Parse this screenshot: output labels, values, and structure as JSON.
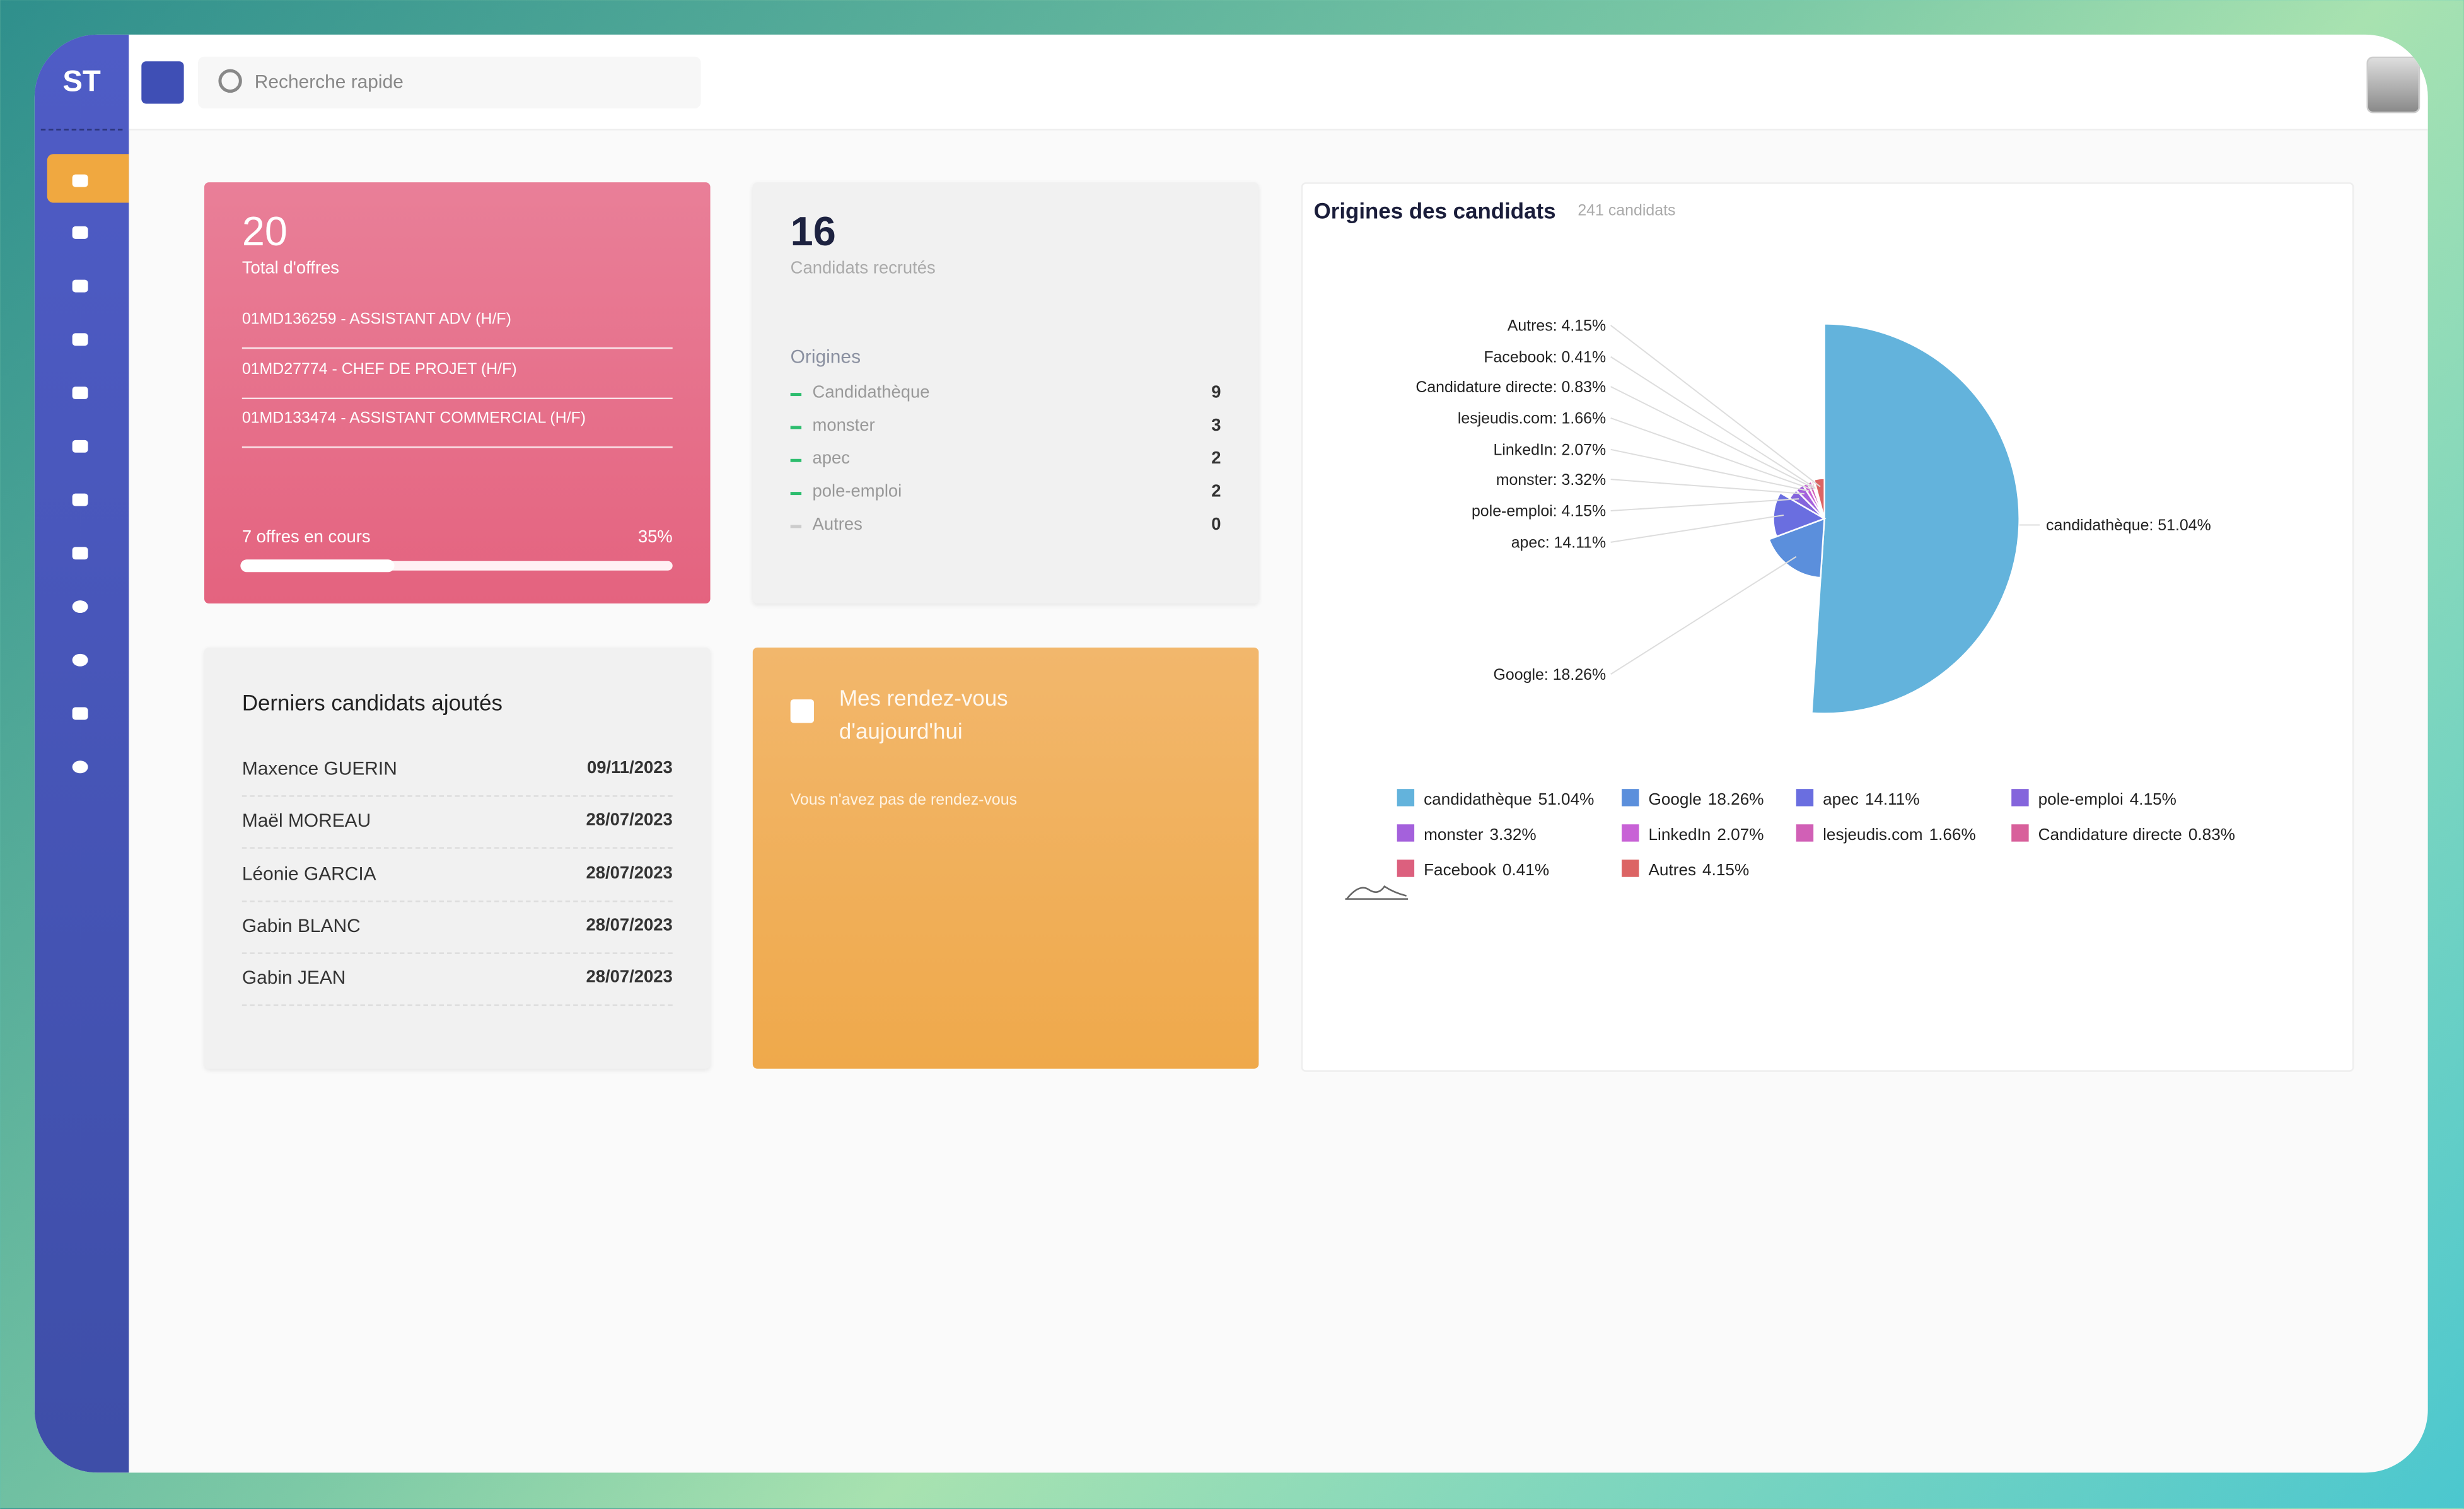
{
  "sidebar": {
    "logo": "ST"
  },
  "search": {
    "placeholder": "Recherche rapide"
  },
  "offers_card": {
    "total": 20,
    "label": "Total d'offres",
    "offers": [
      "01MD136259 - ASSISTANT ADV (H/F)",
      "01MD27774 - CHEF DE PROJET (H/F)",
      "01MD133474 - ASSISTANT COMMERCIAL (H/F)"
    ],
    "footer": "7 offres en cours",
    "progress": 35,
    "progress_label": "35%"
  },
  "recruits_card": {
    "total": 16,
    "label": "Candidats recrutés",
    "origins_title": "Origines",
    "origins": [
      {
        "name": "Candidathèque",
        "count": 9
      },
      {
        "name": "monster",
        "count": 3
      },
      {
        "name": "apec",
        "count": 2
      },
      {
        "name": "pole-emploi",
        "count": 2
      },
      {
        "name": "Autres",
        "count": 0
      }
    ]
  },
  "recent_candidates": {
    "title": "Derniers candidats ajoutés",
    "rows": [
      {
        "name": "Maxence GUERIN",
        "date": "09/11/2023"
      },
      {
        "name": "Maël MOREAU",
        "date": "28/07/2023"
      },
      {
        "name": "Léonie GARCIA",
        "date": "28/07/2023"
      },
      {
        "name": "Gabin BLANC",
        "date": "28/07/2023"
      },
      {
        "name": "Gabin JEAN",
        "date": "28/07/2023"
      }
    ]
  },
  "appointments": {
    "title": "Mes rendez-vous d'aujourd'hui",
    "empty": "Vous n'avez pas de rendez-vous"
  },
  "chart_data": {
    "type": "pie",
    "title": "Origines des candidats",
    "subtitle": "241 candidats",
    "categories": [
      "candidathèque",
      "Google",
      "apec",
      "pole-emploi",
      "monster",
      "LinkedIn",
      "lesjeudis.com",
      "Candidature directe",
      "Facebook",
      "Autres"
    ],
    "values": [
      51.04,
      18.26,
      14.11,
      4.15,
      3.32,
      2.07,
      1.66,
      0.83,
      0.41,
      4.15
    ],
    "value_labels": [
      "51.04%",
      "18.26%",
      "14.11%",
      "4.15%",
      "3.32%",
      "2.07%",
      "1.66%",
      "0.83%",
      "0.41%",
      "4.15%"
    ],
    "callout_labels": [
      "candidathèque: 51.04%",
      "Google: 18.26%",
      "apec: 14.11%",
      "pole-emploi: 4.15%",
      "monster: 3.32%",
      "LinkedIn: 2.07%",
      "lesjeudis.com: 1.66%",
      "Candidature directe: 0.83%",
      "Facebook: 0.41%",
      "Autres: 4.15%"
    ],
    "colors": [
      "#63b3dc",
      "#5b8fdc",
      "#6a6ee0",
      "#8465dc",
      "#a461dc",
      "#c862d6",
      "#d160b6",
      "#d8609b",
      "#dc607e",
      "#dc6464"
    ]
  }
}
